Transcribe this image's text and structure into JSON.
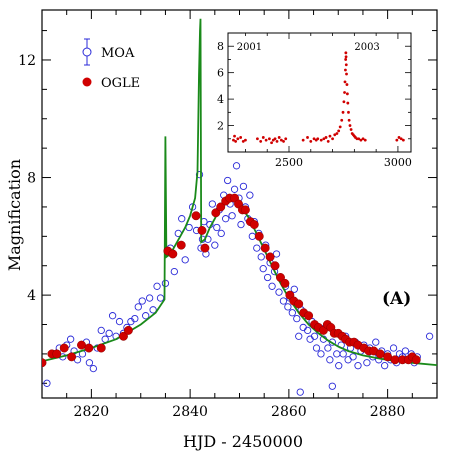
{
  "chart_data": {
    "type": "scatter",
    "xlabel": "HJD - 2450000",
    "ylabel": "Magnification",
    "xlim": [
      2810,
      2890
    ],
    "ylim": [
      0.5,
      13.7
    ],
    "x_ticks": [
      2820,
      2840,
      2860,
      2880
    ],
    "y_ticks": [
      4,
      8,
      12
    ],
    "panel_label": "(A)",
    "legend_position": "top-left",
    "colors": {
      "moa": "#2a2ad8",
      "ogle": "#d00000",
      "model": "#1a8a1a"
    },
    "series": [
      {
        "name": "MOA",
        "marker": "open-circle",
        "points": [
          [
            2811.0,
            1.0
          ],
          [
            2812.5,
            2.0
          ],
          [
            2813.5,
            2.2
          ],
          [
            2814.2,
            1.9
          ],
          [
            2815.0,
            2.3
          ],
          [
            2815.8,
            2.5
          ],
          [
            2816.5,
            2.1
          ],
          [
            2817.2,
            1.8
          ],
          [
            2818.2,
            2.0
          ],
          [
            2819.0,
            2.4
          ],
          [
            2819.6,
            1.7
          ],
          [
            2820.4,
            1.5
          ],
          [
            2821.2,
            2.2
          ],
          [
            2822.0,
            2.8
          ],
          [
            2822.8,
            2.5
          ],
          [
            2823.6,
            2.7
          ],
          [
            2824.3,
            3.3
          ],
          [
            2825.0,
            2.6
          ],
          [
            2825.7,
            3.1
          ],
          [
            2826.5,
            2.7
          ],
          [
            2827.2,
            2.9
          ],
          [
            2828.0,
            3.1
          ],
          [
            2828.8,
            3.2
          ],
          [
            2829.5,
            3.6
          ],
          [
            2830.3,
            3.8
          ],
          [
            2831.0,
            3.3
          ],
          [
            2831.8,
            3.9
          ],
          [
            2832.5,
            3.5
          ],
          [
            2833.3,
            4.3
          ],
          [
            2834.0,
            3.9
          ],
          [
            2835.0,
            4.4
          ],
          [
            2836.0,
            5.6
          ],
          [
            2836.8,
            4.8
          ],
          [
            2837.6,
            6.1
          ],
          [
            2838.3,
            6.6
          ],
          [
            2839.0,
            5.2
          ],
          [
            2839.8,
            6.3
          ],
          [
            2840.5,
            7.0
          ],
          [
            2841.3,
            6.2
          ],
          [
            2841.9,
            8.1
          ],
          [
            2842.2,
            5.6
          ],
          [
            2842.5,
            5.9
          ],
          [
            2842.8,
            6.5
          ],
          [
            2843.2,
            5.4
          ],
          [
            2843.6,
            5.9
          ],
          [
            2844.0,
            6.4
          ],
          [
            2844.5,
            7.1
          ],
          [
            2845.0,
            5.7
          ],
          [
            2845.4,
            6.3
          ],
          [
            2845.9,
            6.9
          ],
          [
            2846.3,
            6.1
          ],
          [
            2846.8,
            7.4
          ],
          [
            2847.2,
            6.6
          ],
          [
            2847.6,
            7.9
          ],
          [
            2848.1,
            7.1
          ],
          [
            2848.5,
            6.7
          ],
          [
            2849.0,
            7.6
          ],
          [
            2849.4,
            8.4
          ],
          [
            2849.9,
            7.3
          ],
          [
            2850.3,
            6.4
          ],
          [
            2850.8,
            7.7
          ],
          [
            2851.2,
            7.0
          ],
          [
            2851.7,
            6.6
          ],
          [
            2852.1,
            7.4
          ],
          [
            2852.6,
            6.0
          ],
          [
            2853.0,
            6.5
          ],
          [
            2853.5,
            5.6
          ],
          [
            2853.9,
            6.1
          ],
          [
            2854.4,
            5.3
          ],
          [
            2854.8,
            4.9
          ],
          [
            2855.3,
            5.7
          ],
          [
            2855.7,
            4.6
          ],
          [
            2856.2,
            5.1
          ],
          [
            2856.6,
            4.3
          ],
          [
            2857.1,
            4.8
          ],
          [
            2857.5,
            5.4
          ],
          [
            2858.0,
            4.1
          ],
          [
            2858.4,
            4.6
          ],
          [
            2858.9,
            3.8
          ],
          [
            2859.3,
            4.3
          ],
          [
            2859.8,
            3.6
          ],
          [
            2860.2,
            3.9
          ],
          [
            2860.7,
            3.4
          ],
          [
            2861.1,
            4.2
          ],
          [
            2861.6,
            3.2
          ],
          [
            2862.0,
            2.6
          ],
          [
            2862.5,
            3.5
          ],
          [
            2862.9,
            2.9
          ],
          [
            2863.4,
            3.3
          ],
          [
            2863.8,
            2.8
          ],
          [
            2864.3,
            2.5
          ],
          [
            2864.7,
            3.1
          ],
          [
            2865.2,
            2.6
          ],
          [
            2865.6,
            2.2
          ],
          [
            2866.1,
            2.8
          ],
          [
            2866.5,
            2.0
          ],
          [
            2867.0,
            2.5
          ],
          [
            2867.4,
            2.9
          ],
          [
            2867.9,
            2.2
          ],
          [
            2868.3,
            1.8
          ],
          [
            2868.8,
            2.4
          ],
          [
            2869.2,
            2.7
          ],
          [
            2869.7,
            2.0
          ],
          [
            2870.1,
            1.6
          ],
          [
            2870.6,
            2.3
          ],
          [
            2871.0,
            2.0
          ],
          [
            2871.5,
            2.6
          ],
          [
            2872.0,
            1.8
          ],
          [
            2872.5,
            2.2
          ],
          [
            2873.0,
            1.9
          ],
          [
            2873.5,
            2.4
          ],
          [
            2874.0,
            1.6
          ],
          [
            2874.6,
            2.1
          ],
          [
            2875.2,
            2.3
          ],
          [
            2875.8,
            1.7
          ],
          [
            2876.4,
            2.2
          ],
          [
            2877.0,
            1.9
          ],
          [
            2877.6,
            2.4
          ],
          [
            2878.2,
            1.8
          ],
          [
            2878.8,
            2.1
          ],
          [
            2879.4,
            1.6
          ],
          [
            2880.0,
            2.0
          ],
          [
            2880.6,
            1.8
          ],
          [
            2881.2,
            2.2
          ],
          [
            2881.8,
            1.7
          ],
          [
            2882.4,
            2.0
          ],
          [
            2883.0,
            1.9
          ],
          [
            2883.6,
            2.1
          ],
          [
            2884.2,
            1.8
          ],
          [
            2884.8,
            2.0
          ],
          [
            2885.4,
            1.7
          ],
          [
            2886.0,
            1.9
          ],
          [
            2888.5,
            2.6
          ],
          [
            2862.3,
            0.7
          ],
          [
            2868.8,
            0.9
          ]
        ]
      },
      {
        "name": "OGLE",
        "marker": "filled-circle",
        "points": [
          [
            2810.0,
            1.7
          ],
          [
            2812.0,
            2.0
          ],
          [
            2813.0,
            2.0
          ],
          [
            2814.5,
            2.2
          ],
          [
            2816.0,
            1.9
          ],
          [
            2818.0,
            2.3
          ],
          [
            2819.5,
            2.2
          ],
          [
            2822.0,
            2.2
          ],
          [
            2826.5,
            2.6
          ],
          [
            2827.5,
            2.8
          ],
          [
            2835.5,
            5.5
          ],
          [
            2836.5,
            5.4
          ],
          [
            2838.2,
            5.7
          ],
          [
            2841.2,
            6.7
          ],
          [
            2842.4,
            6.2
          ],
          [
            2843.0,
            5.6
          ],
          [
            2845.2,
            6.8
          ],
          [
            2846.2,
            7.0
          ],
          [
            2847.2,
            7.2
          ],
          [
            2848.0,
            7.3
          ],
          [
            2849.0,
            7.3
          ],
          [
            2849.8,
            7.1
          ],
          [
            2850.6,
            6.9
          ],
          [
            2851.2,
            6.9
          ],
          [
            2852.2,
            6.5
          ],
          [
            2853.0,
            6.4
          ],
          [
            2854.0,
            6.0
          ],
          [
            2855.2,
            5.6
          ],
          [
            2856.2,
            5.3
          ],
          [
            2857.2,
            5.0
          ],
          [
            2858.3,
            4.6
          ],
          [
            2859.2,
            4.4
          ],
          [
            2860.2,
            4.0
          ],
          [
            2861.0,
            3.8
          ],
          [
            2862.0,
            3.7
          ],
          [
            2863.0,
            3.4
          ],
          [
            2864.0,
            3.3
          ],
          [
            2865.2,
            3.0
          ],
          [
            2866.0,
            2.9
          ],
          [
            2867.0,
            2.8
          ],
          [
            2867.8,
            3.0
          ],
          [
            2868.5,
            2.9
          ],
          [
            2869.2,
            2.7
          ],
          [
            2870.0,
            2.7
          ],
          [
            2870.8,
            2.6
          ],
          [
            2871.5,
            2.5
          ],
          [
            2872.3,
            2.4
          ],
          [
            2873.2,
            2.4
          ],
          [
            2874.0,
            2.3
          ],
          [
            2875.2,
            2.2
          ],
          [
            2876.2,
            2.1
          ],
          [
            2877.2,
            2.1
          ],
          [
            2878.5,
            2.0
          ],
          [
            2880.0,
            1.9
          ],
          [
            2881.5,
            1.8
          ],
          [
            2883.0,
            1.8
          ],
          [
            2884.2,
            1.8
          ],
          [
            2885.0,
            1.9
          ],
          [
            2885.8,
            1.8
          ]
        ]
      },
      {
        "name": "",
        "type": "line",
        "points": [
          [
            2810.0,
            1.75
          ],
          [
            2815.0,
            1.95
          ],
          [
            2820.0,
            2.2
          ],
          [
            2825.0,
            2.5
          ],
          [
            2830.0,
            3.0
          ],
          [
            2833.0,
            3.4
          ],
          [
            2834.8,
            3.85
          ],
          [
            2835.0,
            9.4
          ],
          [
            2835.2,
            5.3
          ],
          [
            2836.0,
            5.4
          ],
          [
            2837.0,
            5.7
          ],
          [
            2838.0,
            6.0
          ],
          [
            2839.0,
            6.3
          ],
          [
            2840.0,
            6.7
          ],
          [
            2841.0,
            7.3
          ],
          [
            2841.5,
            8.2
          ],
          [
            2841.8,
            11.5
          ],
          [
            2842.0,
            13.0
          ],
          [
            2842.1,
            13.4
          ],
          [
            2842.25,
            5.8
          ],
          [
            2843.0,
            5.9
          ],
          [
            2844.0,
            6.3
          ],
          [
            2845.0,
            6.6
          ],
          [
            2846.0,
            6.95
          ],
          [
            2847.0,
            7.15
          ],
          [
            2848.0,
            7.3
          ],
          [
            2849.0,
            7.3
          ],
          [
            2850.0,
            7.1
          ],
          [
            2852.0,
            6.6
          ],
          [
            2854.0,
            5.9
          ],
          [
            2856.0,
            5.2
          ],
          [
            2858.0,
            4.5
          ],
          [
            2860.0,
            3.9
          ],
          [
            2862.0,
            3.4
          ],
          [
            2864.0,
            3.0
          ],
          [
            2866.0,
            2.7
          ],
          [
            2868.0,
            2.45
          ],
          [
            2870.0,
            2.25
          ],
          [
            2872.0,
            2.1
          ],
          [
            2875.0,
            1.95
          ],
          [
            2878.0,
            1.85
          ],
          [
            2882.0,
            1.75
          ],
          [
            2886.0,
            1.68
          ],
          [
            2890.0,
            1.62
          ]
        ]
      }
    ],
    "inset": {
      "xlim": [
        2220,
        3060
      ],
      "ylim": [
        0.0,
        9.0
      ],
      "x_ticks": [
        2500,
        3000
      ],
      "y_ticks": [
        2,
        4,
        6,
        8
      ],
      "year_labels": [
        {
          "text": "2001",
          "x": 2260
        },
        {
          "text": "2003",
          "x": 2800
        }
      ],
      "points": [
        [
          2245,
          0.9
        ],
        [
          2250,
          1.2
        ],
        [
          2255,
          0.8
        ],
        [
          2265,
          1.0
        ],
        [
          2278,
          1.1
        ],
        [
          2290,
          0.8
        ],
        [
          2300,
          0.9
        ],
        [
          2355,
          1.0
        ],
        [
          2370,
          0.8
        ],
        [
          2382,
          1.1
        ],
        [
          2395,
          0.9
        ],
        [
          2410,
          1.0
        ],
        [
          2420,
          0.7
        ],
        [
          2428,
          0.9
        ],
        [
          2436,
          1.0
        ],
        [
          2445,
          0.8
        ],
        [
          2455,
          1.1
        ],
        [
          2465,
          0.9
        ],
        [
          2475,
          0.8
        ],
        [
          2485,
          1.0
        ],
        [
          2565,
          0.9
        ],
        [
          2585,
          1.1
        ],
        [
          2600,
          0.8
        ],
        [
          2615,
          1.0
        ],
        [
          2625,
          0.9
        ],
        [
          2632,
          1.0
        ],
        [
          2648,
          0.9
        ],
        [
          2660,
          1.0
        ],
        [
          2670,
          1.1
        ],
        [
          2680,
          0.8
        ],
        [
          2688,
          1.2
        ],
        [
          2700,
          1.0
        ],
        [
          2710,
          1.3
        ],
        [
          2720,
          1.4
        ],
        [
          2728,
          1.6
        ],
        [
          2735,
          1.9
        ],
        [
          2742,
          2.4
        ],
        [
          2748,
          3.0
        ],
        [
          2752,
          3.8
        ],
        [
          2755,
          4.5
        ],
        [
          2757,
          5.3
        ],
        [
          2759,
          6.2
        ],
        [
          2760,
          7.0
        ],
        [
          2761,
          7.5
        ],
        [
          2762,
          7.2
        ],
        [
          2763,
          6.6
        ],
        [
          2764,
          5.9
        ],
        [
          2766,
          5.1
        ],
        [
          2768,
          4.4
        ],
        [
          2770,
          3.7
        ],
        [
          2773,
          3.0
        ],
        [
          2776,
          2.4
        ],
        [
          2780,
          2.0
        ],
        [
          2785,
          1.7
        ],
        [
          2790,
          1.4
        ],
        [
          2795,
          1.3
        ],
        [
          2800,
          1.2
        ],
        [
          2805,
          1.1
        ],
        [
          2812,
          1.0
        ],
        [
          2820,
          1.0
        ],
        [
          2830,
          0.9
        ],
        [
          2840,
          1.0
        ],
        [
          2850,
          0.9
        ],
        [
          2995,
          0.9
        ],
        [
          3005,
          1.1
        ],
        [
          3015,
          1.0
        ],
        [
          3025,
          0.9
        ]
      ]
    }
  }
}
